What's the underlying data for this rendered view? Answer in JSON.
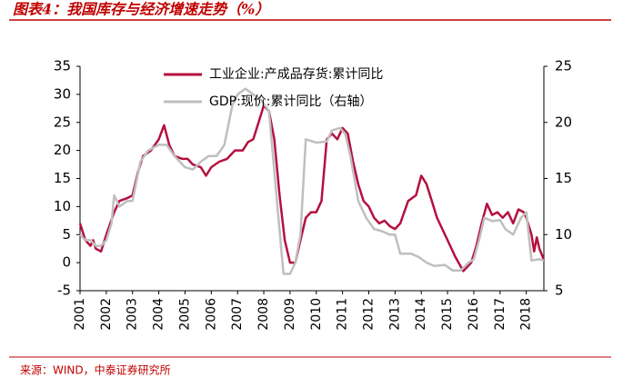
{
  "chart_data": {
    "type": "line",
    "title": "图表4：我国库存与经济增速走势（%）",
    "source": "来源：WIND，中泰证券研究所",
    "xlim": [
      2001,
      2018.67
    ],
    "xticks": [
      2001,
      2002,
      2003,
      2004,
      2005,
      2006,
      2007,
      2008,
      2009,
      2010,
      2011,
      2012,
      2013,
      2014,
      2015,
      2016,
      2017,
      2018
    ],
    "ylim": [
      -5,
      35
    ],
    "yticks": [
      -5,
      0,
      5,
      10,
      15,
      20,
      25,
      30,
      35
    ],
    "y2lim": [
      5,
      25
    ],
    "y2ticks": [
      5,
      10,
      15,
      20,
      25
    ],
    "grid": false,
    "series": [
      {
        "name": "工业企业:产成品存货:累计同比",
        "color": "#b5103f",
        "x": [
          2001.0,
          2001.2,
          2001.4,
          2001.5,
          2001.6,
          2001.8,
          2002.0,
          2002.3,
          2002.5,
          2002.8,
          2003.0,
          2003.2,
          2003.4,
          2003.7,
          2004.0,
          2004.2,
          2004.4,
          2004.6,
          2004.9,
          2005.1,
          2005.3,
          2005.6,
          2005.8,
          2006.0,
          2006.3,
          2006.6,
          2006.9,
          2007.2,
          2007.4,
          2007.6,
          2007.8,
          2008.0,
          2008.2,
          2008.4,
          2008.6,
          2008.8,
          2009.0,
          2009.2,
          2009.4,
          2009.6,
          2009.8,
          2010.0,
          2010.2,
          2010.4,
          2010.6,
          2010.8,
          2011.0,
          2011.2,
          2011.4,
          2011.6,
          2011.8,
          2012.0,
          2012.2,
          2012.4,
          2012.6,
          2012.8,
          2013.0,
          2013.2,
          2013.5,
          2013.8,
          2014.0,
          2014.2,
          2014.4,
          2014.6,
          2014.8,
          2015.0,
          2015.3,
          2015.6,
          2015.9,
          2016.1,
          2016.3,
          2016.5,
          2016.7,
          2016.9,
          2017.1,
          2017.3,
          2017.5,
          2017.7,
          2017.9,
          2018.0,
          2018.2,
          2018.3,
          2018.4,
          2018.5,
          2018.67
        ],
        "values": [
          7,
          4,
          3,
          4,
          2.5,
          2,
          5,
          9,
          11,
          11.5,
          12,
          16,
          19,
          20,
          22,
          24.5,
          21,
          19,
          18.5,
          18.5,
          17.5,
          17,
          15.5,
          17,
          18,
          18.5,
          20,
          20,
          21.5,
          22,
          25,
          28,
          27,
          22,
          12,
          4,
          0,
          0,
          4,
          8,
          9,
          9,
          11,
          22,
          23,
          22,
          24,
          23,
          18,
          14,
          11,
          10,
          8,
          7,
          7.5,
          6.5,
          6,
          7,
          11,
          12,
          15.5,
          14,
          11,
          8,
          6,
          4,
          1,
          -1.5,
          0,
          3,
          7,
          10.5,
          8.5,
          9,
          8,
          9,
          7,
          9.5,
          9,
          8,
          5,
          2,
          4.5,
          2.5,
          0.5
        ]
      },
      {
        "name": "GDP:现价:累计同比（右轴）",
        "color": "#bfbfbf",
        "axis": "y2",
        "x": [
          2001.0,
          2001.2,
          2001.4,
          2001.6,
          2001.8,
          2002.0,
          2002.2,
          2002.3,
          2002.5,
          2002.8,
          2003.0,
          2003.3,
          2003.6,
          2004.0,
          2004.3,
          2004.6,
          2005.0,
          2005.3,
          2005.6,
          2005.9,
          2006.2,
          2006.5,
          2006.8,
          2007.0,
          2007.3,
          2007.6,
          2007.9,
          2008.2,
          2008.5,
          2008.75,
          2009.0,
          2009.2,
          2009.4,
          2009.6,
          2010.0,
          2010.4,
          2010.6,
          2010.9,
          2011.1,
          2011.3,
          2011.6,
          2011.9,
          2012.2,
          2012.5,
          2012.8,
          2013.0,
          2013.2,
          2013.6,
          2013.9,
          2014.2,
          2014.5,
          2014.9,
          2015.2,
          2015.5,
          2015.8,
          2016.0,
          2016.2,
          2016.4,
          2016.7,
          2017.0,
          2017.2,
          2017.5,
          2017.8,
          2018.0,
          2018.2,
          2018.5,
          2018.67
        ],
        "values": [
          10,
          9.5,
          9.5,
          9,
          9,
          9.5,
          11,
          13.5,
          12.5,
          13,
          13,
          16.5,
          17.5,
          18,
          18,
          17,
          16,
          15.8,
          16.5,
          17,
          17,
          18,
          21.5,
          22.5,
          23,
          22.5,
          22,
          21,
          13,
          6.5,
          6.5,
          7.5,
          10,
          18.5,
          18.2,
          18.3,
          19.3,
          19.5,
          19,
          17,
          13,
          11.5,
          10.5,
          10.3,
          10,
          10,
          8.3,
          8.3,
          8,
          7.5,
          7.2,
          7.3,
          6.8,
          6.8,
          7.5,
          7.8,
          9.5,
          11.5,
          11.2,
          11.3,
          10.5,
          10,
          11.5,
          12,
          7.7,
          7.8,
          7.7
        ]
      }
    ]
  }
}
